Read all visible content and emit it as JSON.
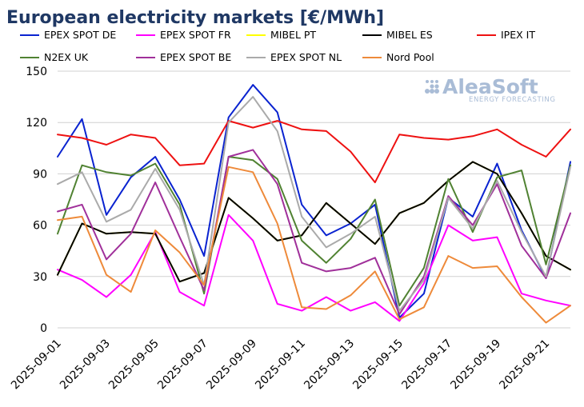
{
  "chart_data": {
    "type": "line",
    "title": "European electricity markets [€/MWh]",
    "xlabel": "",
    "ylabel": "",
    "ylim": [
      0,
      150
    ],
    "yticks": [
      0,
      30,
      60,
      90,
      120,
      150
    ],
    "x": [
      "2025-09-01",
      "2025-09-02",
      "2025-09-03",
      "2025-09-04",
      "2025-09-05",
      "2025-09-06",
      "2025-09-07",
      "2025-09-08",
      "2025-09-09",
      "2025-09-10",
      "2025-09-11",
      "2025-09-12",
      "2025-09-13",
      "2025-09-14",
      "2025-09-15",
      "2025-09-16",
      "2025-09-17",
      "2025-09-18",
      "2025-09-19",
      "2025-09-20",
      "2025-09-21",
      "2025-09-22"
    ],
    "xtick_labels": [
      "2025-09-01",
      "2025-09-03",
      "2025-09-05",
      "2025-09-07",
      "2025-09-09",
      "2025-09-11",
      "2025-09-13",
      "2025-09-15",
      "2025-09-17",
      "2025-09-19",
      "2025-09-21"
    ],
    "grid": true,
    "legend_position": "top",
    "series": [
      {
        "name": "EPEX SPOT DE",
        "color": "#0a23d0",
        "values": [
          100,
          122,
          66,
          88,
          100,
          75,
          42,
          123,
          142,
          126,
          72,
          54,
          61,
          72,
          6,
          20,
          76,
          65,
          96,
          57,
          29,
          97
        ]
      },
      {
        "name": "EPEX SPOT FR",
        "color": "#ff00ff",
        "values": [
          34,
          28,
          18,
          31,
          56,
          21,
          13,
          66,
          51,
          14,
          10,
          18,
          10,
          15,
          4,
          26,
          60,
          51,
          53,
          20,
          16,
          13
        ]
      },
      {
        "name": "MIBEL PT",
        "color": "#ffff00",
        "values": [
          31,
          61,
          55,
          56,
          55,
          27,
          32,
          76,
          64,
          51,
          54,
          73,
          61,
          49,
          67,
          73,
          86,
          97,
          90,
          67,
          42,
          34
        ]
      },
      {
        "name": "MIBEL ES",
        "color": "#000000",
        "values": [
          31,
          61,
          55,
          56,
          55,
          27,
          32,
          76,
          64,
          51,
          54,
          73,
          61,
          49,
          67,
          73,
          86,
          97,
          90,
          67,
          42,
          34
        ]
      },
      {
        "name": "IPEX IT",
        "color": "#ee1111",
        "values": [
          113,
          111,
          107,
          113,
          111,
          95,
          96,
          121,
          117,
          121,
          116,
          115,
          103,
          85,
          113,
          111,
          110,
          112,
          116,
          107,
          100,
          116
        ]
      },
      {
        "name": "N2EX UK",
        "color": "#508232",
        "values": [
          55,
          95,
          91,
          89,
          96,
          72,
          20,
          100,
          98,
          87,
          51,
          38,
          52,
          75,
          13,
          35,
          87,
          56,
          88,
          92,
          37,
          95
        ]
      },
      {
        "name": "EPEX SPOT BE",
        "color": "#a0309a",
        "values": [
          68,
          72,
          40,
          55,
          85,
          53,
          22,
          100,
          104,
          84,
          38,
          33,
          35,
          41,
          8,
          30,
          77,
          60,
          84,
          48,
          29,
          67
        ]
      },
      {
        "name": "EPEX SPOT NL",
        "color": "#aaaaaa",
        "values": [
          84,
          91,
          62,
          69,
          93,
          69,
          25,
          120,
          135,
          115,
          65,
          47,
          55,
          65,
          10,
          28,
          76,
          58,
          86,
          56,
          30,
          94
        ]
      },
      {
        "name": "Nord Pool",
        "color": "#ee8a3a",
        "values": [
          63,
          65,
          31,
          21,
          57,
          44,
          25,
          94,
          91,
          61,
          12,
          11,
          19,
          33,
          5,
          12,
          42,
          35,
          36,
          18,
          3,
          13
        ]
      }
    ]
  },
  "logo": {
    "name": "AleaSoft",
    "tagline": "ENERGY FORECASTING",
    "color": "#a9bcd6"
  }
}
